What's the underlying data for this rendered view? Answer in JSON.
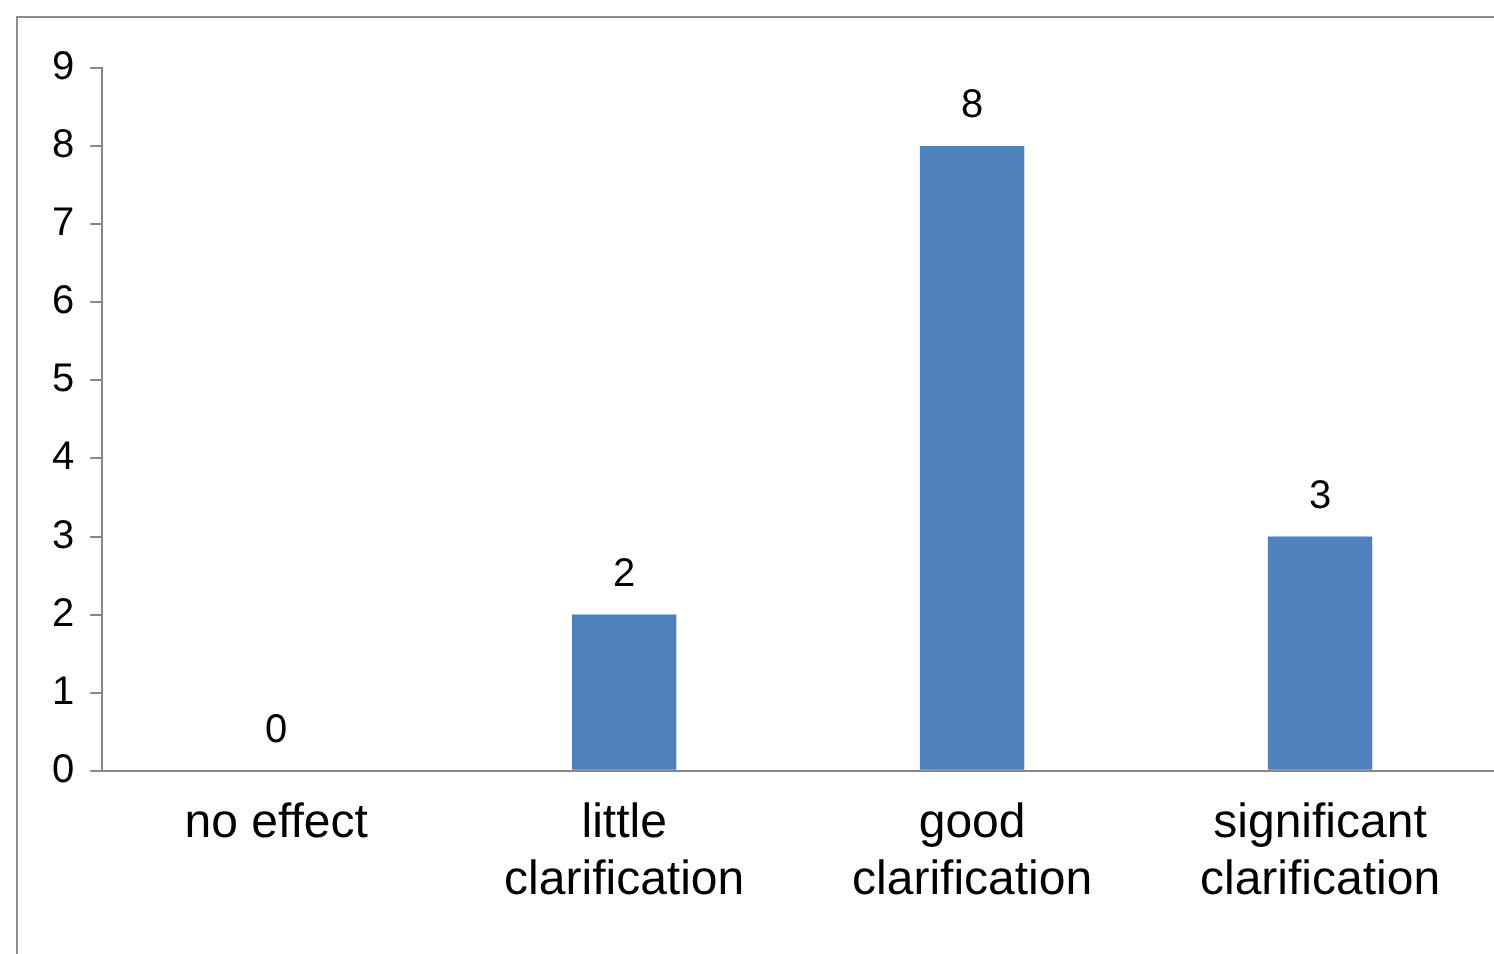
{
  "chart_data": {
    "type": "bar",
    "categories": [
      "no effect",
      "little clarification",
      "good clarification",
      "significant clarification"
    ],
    "values": [
      0,
      2,
      8,
      3
    ],
    "color": "#4f81bd",
    "ylim": [
      0,
      9
    ],
    "yticks": [
      0,
      1,
      2,
      3,
      4,
      5,
      6,
      7,
      8,
      9
    ],
    "grid": false,
    "legend": false,
    "data_labels": true
  }
}
